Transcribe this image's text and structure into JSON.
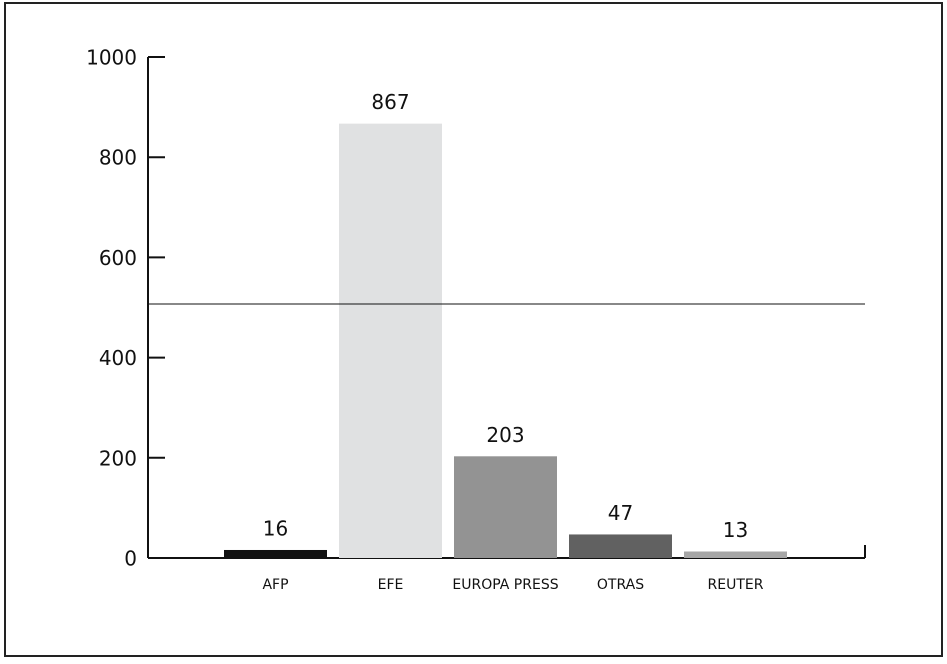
{
  "chart_data": {
    "type": "bar",
    "categories": [
      "AFP",
      "EFE",
      "EUROPA PRESS",
      "OTRAS",
      "REUTER"
    ],
    "values": [
      16,
      867,
      203,
      47,
      13
    ],
    "colors": [
      "#111111",
      "#e0e1e2",
      "#939393",
      "#616161",
      "#a6a6a6"
    ],
    "ylim": [
      0,
      1000
    ],
    "yticks": [
      0,
      200,
      400,
      600,
      800,
      1000
    ],
    "reference_line": 507
  }
}
